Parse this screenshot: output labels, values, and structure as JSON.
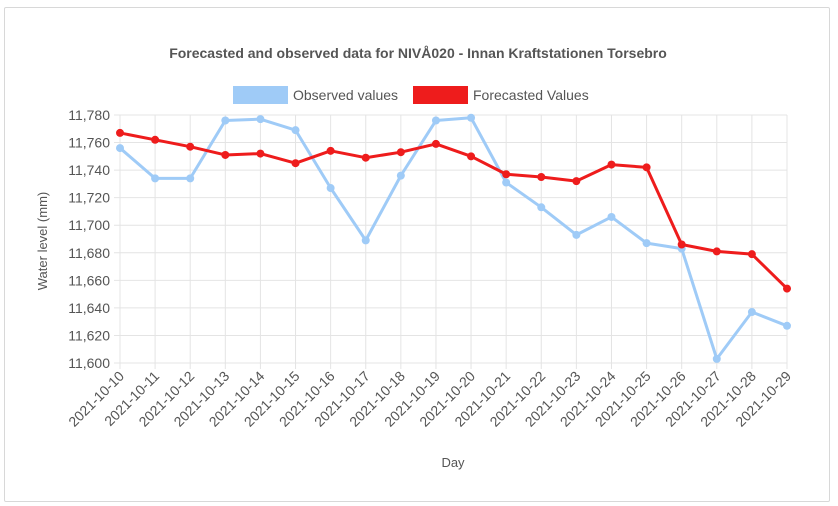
{
  "chart_data": {
    "type": "line",
    "title": "Forecasted and observed data for NIVÅ020 - Innan Kraftstationen Torsebro",
    "xlabel": "Day",
    "ylabel": "Water level (mm)",
    "ylim": [
      11600,
      11780
    ],
    "yticks": [
      "11,600",
      "11,620",
      "11,640",
      "11,660",
      "11,680",
      "11,700",
      "11,720",
      "11,740",
      "11,760",
      "11,780"
    ],
    "grid": true,
    "legend_position": "top",
    "categories": [
      "2021-10-10",
      "2021-10-11",
      "2021-10-12",
      "2021-10-13",
      "2021-10-14",
      "2021-10-15",
      "2021-10-16",
      "2021-10-17",
      "2021-10-18",
      "2021-10-19",
      "2021-10-20",
      "2021-10-21",
      "2021-10-22",
      "2021-10-23",
      "2021-10-24",
      "2021-10-25",
      "2021-10-26",
      "2021-10-27",
      "2021-10-28",
      "2021-10-29"
    ],
    "series": [
      {
        "name": "Observed values",
        "color": "#9fcbf7",
        "values": [
          11756,
          11734,
          11734,
          11776,
          11777,
          11769,
          11727,
          11689,
          11736,
          11776,
          11778,
          11731,
          11713,
          11693,
          11706,
          11687,
          11683,
          11603,
          11637,
          11627
        ]
      },
      {
        "name": "Forecasted Values",
        "color": "#ee1c1c",
        "values": [
          11767,
          11762,
          11757,
          11751,
          11752,
          11745,
          11754,
          11749,
          11753,
          11759,
          11750,
          11737,
          11735,
          11732,
          11744,
          11742,
          11686,
          11681,
          11679,
          11654
        ]
      }
    ]
  }
}
